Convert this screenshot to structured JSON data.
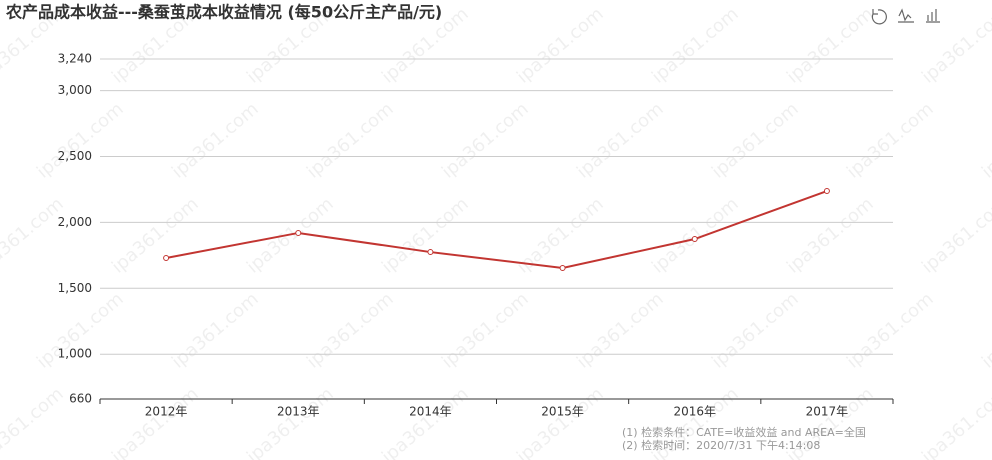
{
  "chart_data": {
    "type": "line",
    "title": "农产品成本收益---桑蚕茧成本收益情况 (每50公斤主产品/元)",
    "categories": [
      "2012年",
      "2013年",
      "2014年",
      "2015年",
      "2016年",
      "2017年"
    ],
    "series": [
      {
        "name": "桑蚕茧",
        "color": "#c23531",
        "values": [
          1730,
          1920,
          1775,
          1654,
          1874,
          2238
        ]
      }
    ],
    "ylim": [
      660,
      3240
    ],
    "yticks": [
      660,
      {
        "value": 1000,
        "label": "1,000"
      },
      {
        "value": 1500,
        "label": "1,500"
      },
      {
        "value": 2000,
        "label": "2,000"
      },
      {
        "value": 2500,
        "label": "2,500"
      },
      {
        "value": 3000,
        "label": "3,000"
      },
      {
        "value": 3240,
        "label": "3,240"
      }
    ],
    "grid": true,
    "notes": [
      "(1) 检索条件：CATE=收益效益 and AREA=全国",
      "(2) 检索时间：2020/7/31 下午4:14:08"
    ],
    "watermark": "ipa361.com"
  }
}
